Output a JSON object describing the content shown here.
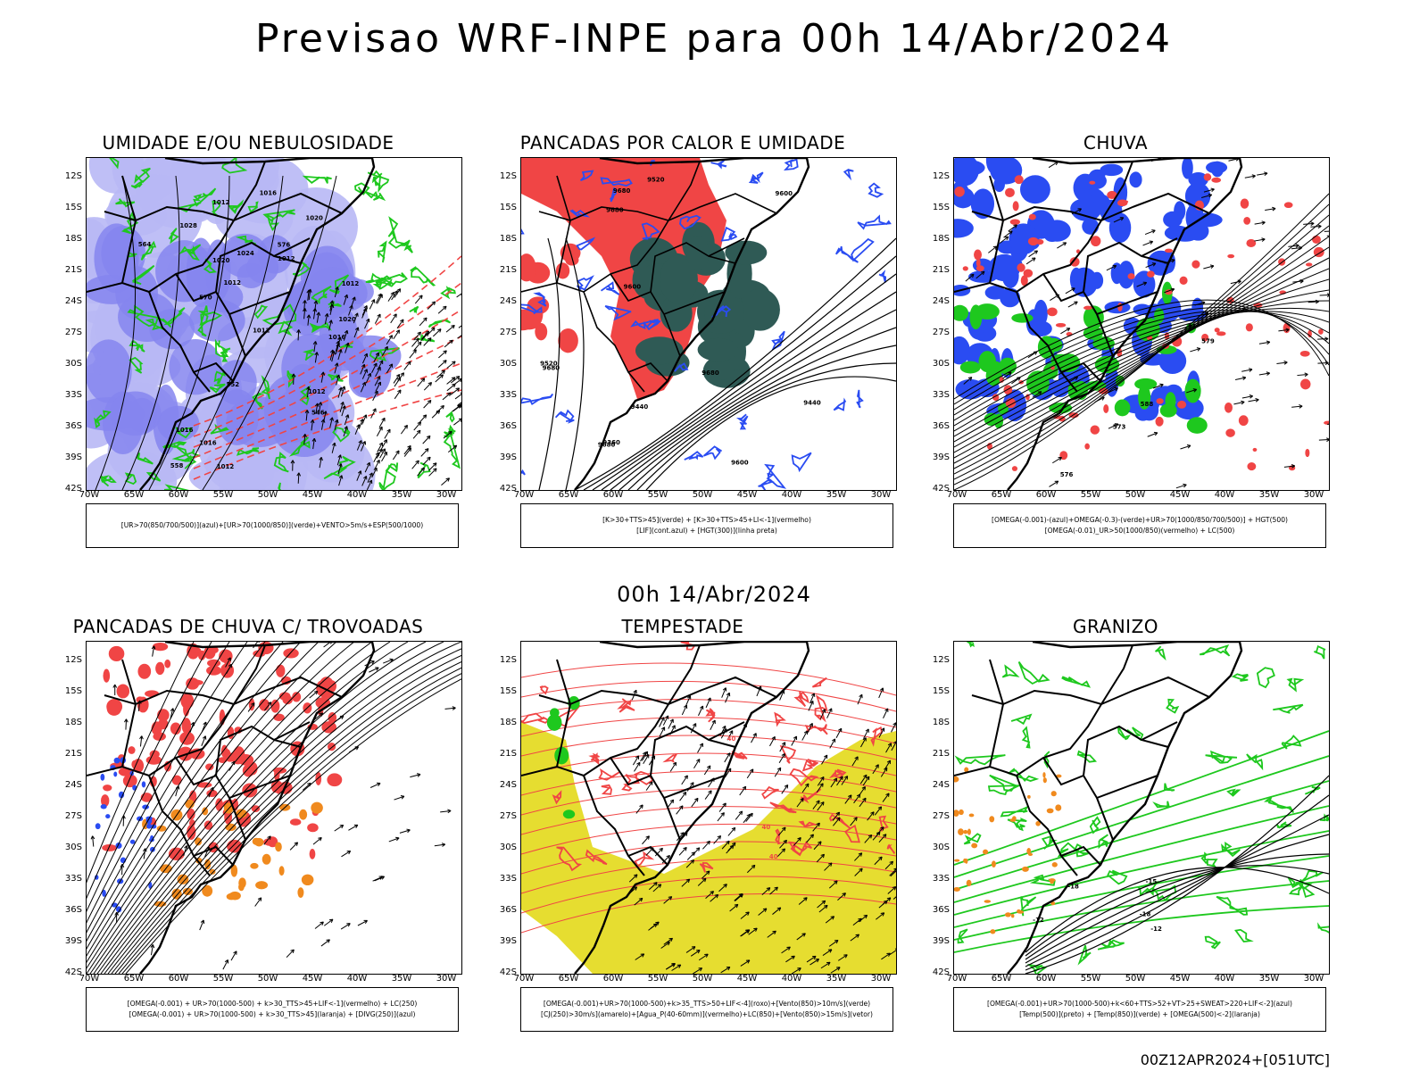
{
  "title": "Previsao WRF-INPE  para 00h 14/Abr/2024",
  "mid_date": "00h 14/Abr/2024",
  "footer": "00Z12APR2024+[051UTC]",
  "axes": {
    "lat_labels": [
      "12S",
      "15S",
      "18S",
      "21S",
      "24S",
      "27S",
      "30S",
      "33S",
      "36S",
      "39S",
      "42S"
    ],
    "lon_labels": [
      "70W",
      "65W",
      "60W",
      "55W",
      "50W",
      "45W",
      "40W",
      "35W",
      "30W"
    ]
  },
  "colors": {
    "blue": "#2a4cf2",
    "light_blue": "#b8b8f5",
    "mid_blue": "#8585ee",
    "green": "#1ec81e",
    "red": "#f04545",
    "dark_teal": "#2f5a55",
    "orange": "#f08a1e",
    "yellow": "#e6dd30",
    "black": "#000000"
  },
  "panels": [
    {
      "id": "umidade",
      "title": "UMIDADE E/OU NEBULOSIDADE",
      "legend": [
        "[UR>70(850/700/500)](azul)+[UR>70(1000/850)](verde)+VENTO>5m/s+ESP(500/1000)"
      ],
      "contour_labels": [
        "1012",
        "1012",
        "1012",
        "1016",
        "1012",
        "1012",
        "1020",
        "1016",
        "1012",
        "1016",
        "1020",
        "1024",
        "1028",
        "576",
        "570",
        "564",
        "558",
        "552",
        "546",
        "1016",
        "1012",
        "1020"
      ]
    },
    {
      "id": "pancadas-calor",
      "title": "PANCADAS POR CALOR E UMIDADE",
      "legend": [
        "[K>30+TTS>45](verde) + [K>30+TTS>45+LI<-1](vermelho)",
        "[LIF](cont.azul) + [HGT(300)](linha preta)"
      ],
      "contour_labels": [
        "9680",
        "9680",
        "9680",
        "9600",
        "9520",
        "9680",
        "9680",
        "9600",
        "9440",
        "9520",
        "9440",
        "9360",
        "9600"
      ]
    },
    {
      "id": "chuva",
      "title": "CHUVA",
      "legend": [
        "[OMEGA(-0.001)-(azul)+OMEGA(-0.3)-(verde)+UR>70(1000/850/700/500)] + HGT(500)",
        "[OMEGA(-0.01)_UR>50(1000/850)(vermelho) + LC(500)"
      ],
      "contour_labels": [
        "588",
        "579",
        "576",
        "573"
      ]
    },
    {
      "id": "pancadas-trovoadas",
      "title": "PANCADAS DE CHUVA C/ TROVOADAS",
      "legend": [
        "[OMEGA(-0.001) + UR>70(1000-500) + k>30_TTS>45+LIF<-1](vermelho) + LC(250)",
        "[OMEGA(-0.001) + UR>70(1000-500) + k>30_TTS>45](laranja) + [DIVG(250)](azul)"
      ],
      "contour_labels": []
    },
    {
      "id": "tempestade",
      "title": "TEMPESTADE",
      "legend": [
        "[OMEGA(-0.001)+UR>70(1000-500)+k>35_TTS>50+LIF<-4](roxo)+[Vento(850)>10m/s](verde)",
        "[CJ(250)>30m/s](amarelo)+[Agua_P(40-60mm)](vermelho)+LC(850)+[Vento(850)>15m/s](vetor)"
      ],
      "contour_labels": [
        "40",
        "40",
        "40"
      ]
    },
    {
      "id": "granizo",
      "title": "GRANIZO",
      "legend": [
        "[OMEGA(-0.001)+UR>70(1000-500)+k<60+TTS>52+VT>25+SWEAT>220+LIF<-2](azul)",
        "[Temp(500)](preto) + [Temp(850)](verde) + [OMEGA(500)<-2](laranja)"
      ],
      "contour_labels": [
        "-12",
        "-12",
        "-15",
        "-18",
        "-18"
      ]
    }
  ]
}
